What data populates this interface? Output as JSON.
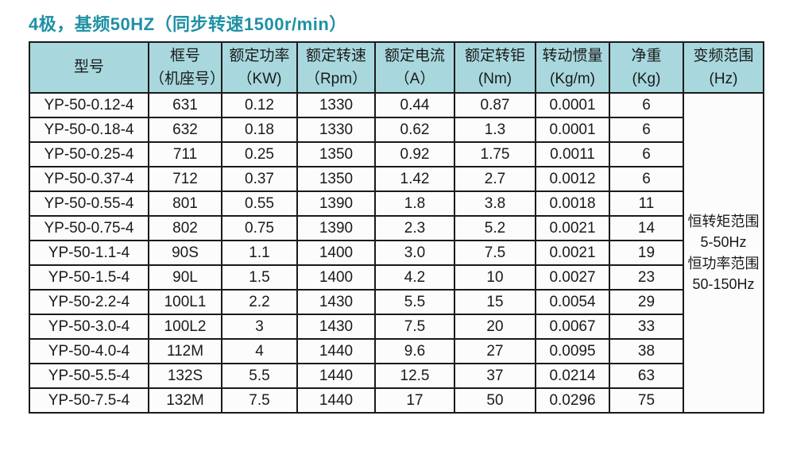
{
  "page": {
    "title": "4极，基频50HZ（同步转速1500r/min）"
  },
  "colors": {
    "title": "#1e91a5",
    "header_bg": "#a8d8de",
    "border": "#1a1a1a",
    "cell_bg": "#fcfcfc",
    "text": "#1a1a1a"
  },
  "table": {
    "columns": [
      {
        "l1": "型号",
        "l2": ""
      },
      {
        "l1": "框号",
        "l2": "（机座号）"
      },
      {
        "l1": "额定功率",
        "l2": "（KW)"
      },
      {
        "l1": "额定转速",
        "l2": "（Rpm）"
      },
      {
        "l1": "额定电流",
        "l2": "（A）"
      },
      {
        "l1": "额定转钜",
        "l2": "(Nm)"
      },
      {
        "l1": "转动惯量",
        "l2": "(Kg/m)"
      },
      {
        "l1": "净重",
        "l2": "(Kg)"
      },
      {
        "l1": "变频范围",
        "l2": "(Hz)"
      }
    ],
    "rows": [
      [
        "YP-50-0.12-4",
        "631",
        "0.12",
        "1330",
        "0.44",
        "0.87",
        "0.0001",
        "6"
      ],
      [
        "YP-50-0.18-4",
        "632",
        "0.18",
        "1330",
        "0.62",
        "1.3",
        "0.0001",
        "6"
      ],
      [
        "YP-50-0.25-4",
        "711",
        "0.25",
        "1350",
        "0.92",
        "1.75",
        "0.0011",
        "6"
      ],
      [
        "YP-50-0.37-4",
        "712",
        "0.37",
        "1350",
        "1.42",
        "2.7",
        "0.0012",
        "6"
      ],
      [
        "YP-50-0.55-4",
        "801",
        "0.55",
        "1390",
        "1.8",
        "3.8",
        "0.0018",
        "11"
      ],
      [
        "YP-50-0.75-4",
        "802",
        "0.75",
        "1390",
        "2.3",
        "5.2",
        "0.0021",
        "14"
      ],
      [
        "YP-50-1.1-4",
        "90S",
        "1.1",
        "1400",
        "3.0",
        "7.5",
        "0.0021",
        "19"
      ],
      [
        "YP-50-1.5-4",
        "90L",
        "1.5",
        "1400",
        "4.2",
        "10",
        "0.0027",
        "23"
      ],
      [
        "YP-50-2.2-4",
        "100L1",
        "2.2",
        "1430",
        "5.5",
        "15",
        "0.0054",
        "29"
      ],
      [
        "YP-50-3.0-4",
        "100L2",
        "3",
        "1430",
        "7.5",
        "20",
        "0.0067",
        "33"
      ],
      [
        "YP-50-4.0-4",
        "112M",
        "4",
        "1440",
        "9.6",
        "27",
        "0.0095",
        "38"
      ],
      [
        "YP-50-5.5-4",
        "132S",
        "5.5",
        "1440",
        "12.5",
        "37",
        "0.0214",
        "63"
      ],
      [
        "YP-50-7.5-4",
        "132M",
        "7.5",
        "1440",
        "17",
        "50",
        "0.0296",
        "75"
      ]
    ],
    "freq_range_lines": [
      "恒转矩范围",
      "5-50Hz",
      "恒功率范围",
      "50-150Hz"
    ]
  }
}
